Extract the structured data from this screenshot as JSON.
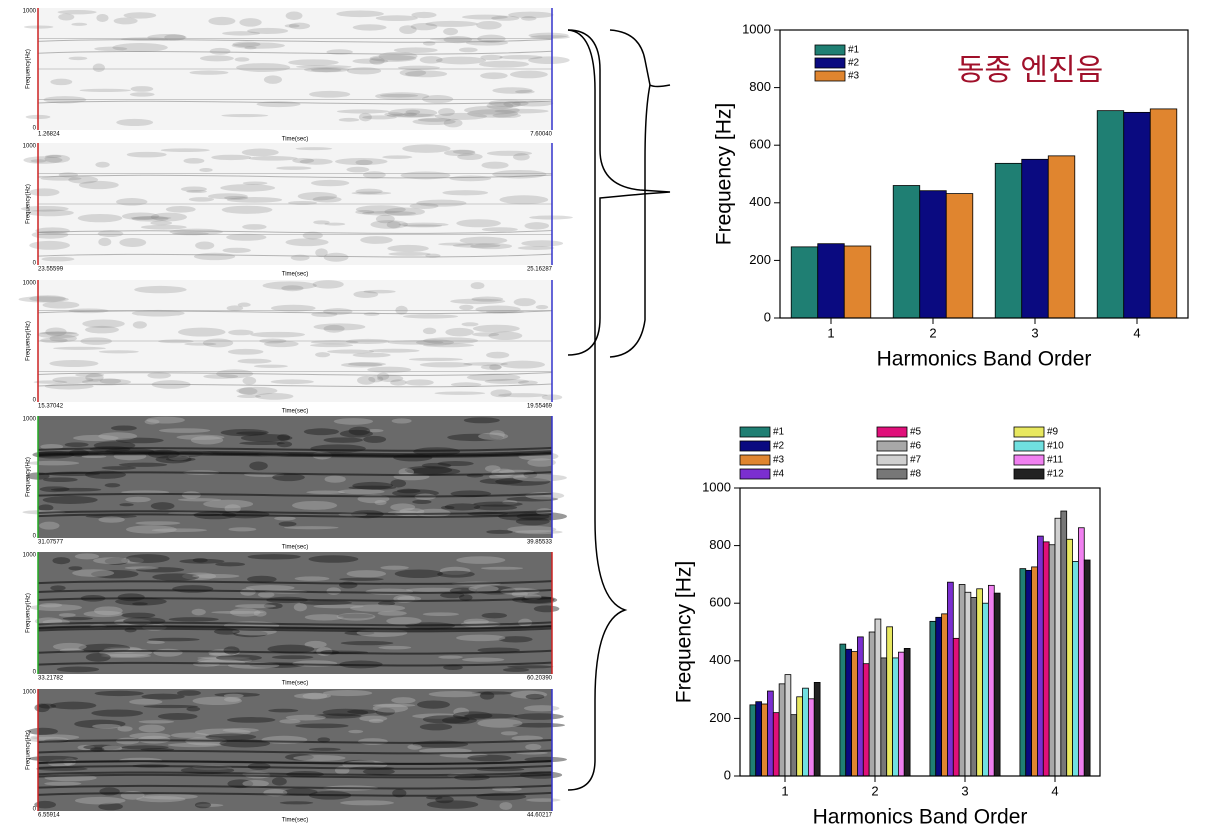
{
  "spectrograms": [
    {
      "freq_max": "1000",
      "freq_min": "0",
      "ylabel": "Frequency(Hz)",
      "xlabel": "Time(sec)",
      "t_start": "1.26824",
      "t_end": "7.60040"
    },
    {
      "freq_max": "1000",
      "freq_min": "0",
      "ylabel": "Frequency(Hz)",
      "xlabel": "Time(sec)",
      "t_start": "23.55599",
      "t_end": "25.16287"
    },
    {
      "freq_max": "1000",
      "freq_min": "0",
      "ylabel": "Frequency(Hz)",
      "xlabel": "Time(sec)",
      "t_start": "15.37042",
      "t_end": "19.55469"
    },
    {
      "freq_max": "1000",
      "freq_min": "0",
      "ylabel": "Frequency(Hz)",
      "xlabel": "Time(sec)",
      "t_start": "31.07577",
      "t_end": "39.85533"
    },
    {
      "freq_max": "1000",
      "freq_min": "0",
      "ylabel": "Frequency(Hz)",
      "xlabel": "Time(sec)",
      "t_start": "33.21782",
      "t_end": "60.20390"
    },
    {
      "freq_max": "1000",
      "freq_min": "0",
      "ylabel": "Frequency(Hz)",
      "xlabel": "Time(sec)",
      "t_start": "6.55914",
      "t_end": "44.60217"
    }
  ],
  "chart_data": [
    {
      "type": "bar",
      "annotation": "동종 엔진음",
      "x_label": "Harmonics Band Order",
      "y_label": "Frequency [Hz]",
      "categories": [
        "1",
        "2",
        "3",
        "4"
      ],
      "series": [
        {
          "name": "#1",
          "color": "#1f7f73",
          "values": [
            247,
            460,
            537,
            720
          ]
        },
        {
          "name": "#2",
          "color": "#0a0a80",
          "values": [
            258,
            442,
            551,
            714
          ]
        },
        {
          "name": "#3",
          "color": "#e0852f",
          "values": [
            250,
            432,
            563,
            726
          ]
        }
      ],
      "ylim": [
        0,
        1000
      ],
      "yticks": [
        0,
        200,
        400,
        600,
        800,
        1000
      ]
    },
    {
      "type": "bar",
      "x_label": "Harmonics Band Order",
      "y_label": "Frequency [Hz]",
      "categories": [
        "1",
        "2",
        "3",
        "4"
      ],
      "series": [
        {
          "name": "#1",
          "color": "#1f7f73",
          "values": [
            247,
            458,
            537,
            720
          ]
        },
        {
          "name": "#2",
          "color": "#0a0a80",
          "values": [
            258,
            440,
            551,
            714
          ]
        },
        {
          "name": "#3",
          "color": "#e0852f",
          "values": [
            250,
            432,
            563,
            726
          ]
        },
        {
          "name": "#4",
          "color": "#7b2fd0",
          "values": [
            295,
            483,
            673,
            833
          ]
        },
        {
          "name": "#5",
          "color": "#e0107a",
          "values": [
            220,
            390,
            478,
            813
          ]
        },
        {
          "name": "#6",
          "color": "#a8a8a8",
          "values": [
            320,
            500,
            665,
            803
          ]
        },
        {
          "name": "#7",
          "color": "#d0d0d0",
          "values": [
            352,
            545,
            638,
            895
          ]
        },
        {
          "name": "#8",
          "color": "#777777",
          "values": [
            213,
            410,
            620,
            920
          ]
        },
        {
          "name": "#9",
          "color": "#e8e860",
          "values": [
            275,
            518,
            650,
            822
          ]
        },
        {
          "name": "#10",
          "color": "#70e0e0",
          "values": [
            305,
            410,
            600,
            745
          ]
        },
        {
          "name": "#11",
          "color": "#f080f0",
          "values": [
            268,
            430,
            662,
            862
          ]
        },
        {
          "name": "#12",
          "color": "#222222",
          "values": [
            325,
            443,
            635,
            750
          ]
        }
      ],
      "ylim": [
        0,
        1000
      ],
      "yticks": [
        0,
        200,
        400,
        600,
        800,
        1000
      ]
    }
  ]
}
